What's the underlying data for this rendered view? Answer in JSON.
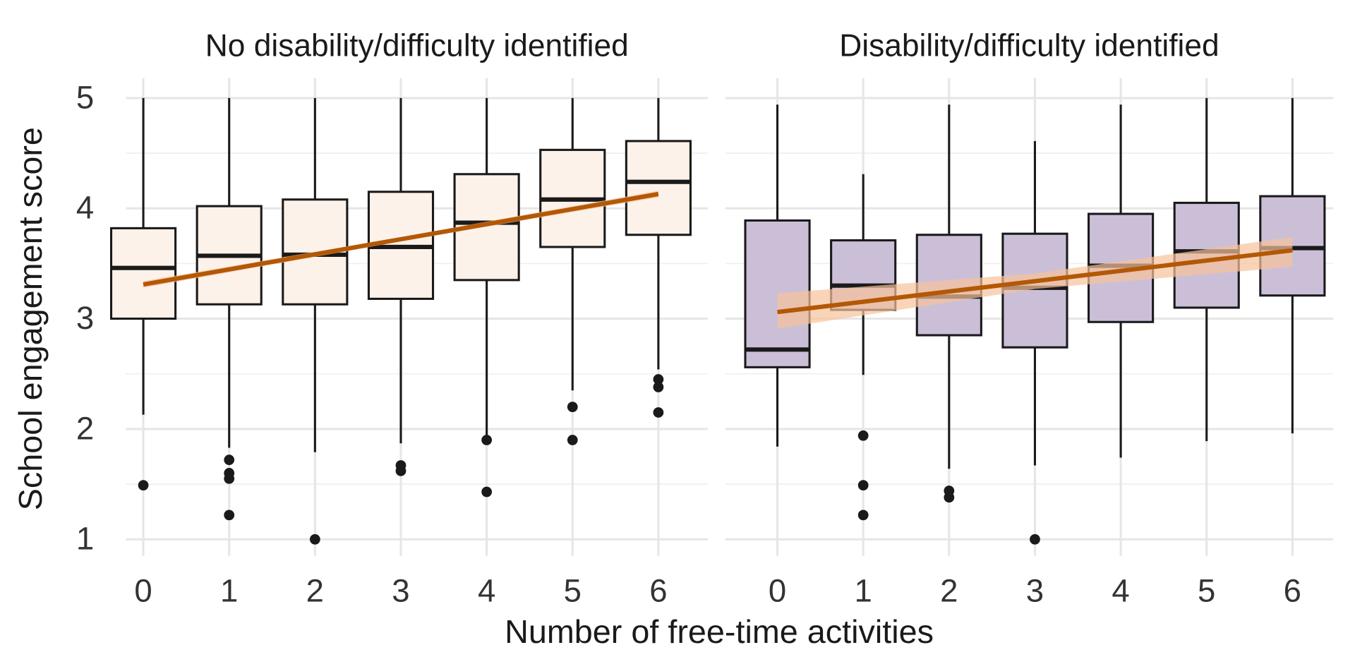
{
  "xlabel": "Number of free-time activities",
  "ylabel": "School engagement score",
  "chart_data": [
    {
      "type": "box",
      "title": "No disability/difficulty identified",
      "categories": [
        "0",
        "1",
        "2",
        "3",
        "4",
        "5",
        "6"
      ],
      "color": "#fdf2ea",
      "boxes": [
        {
          "low": 2.13,
          "q1": 3.0,
          "median": 3.46,
          "q3": 3.82,
          "high": 5,
          "outliers": [
            1.49
          ]
        },
        {
          "low": 1.83,
          "q1": 3.13,
          "median": 3.57,
          "q3": 4.02,
          "high": 5,
          "outliers": [
            1.72,
            1.6,
            1.55,
            1.22
          ]
        },
        {
          "low": 1.79,
          "q1": 3.13,
          "median": 3.58,
          "q3": 4.08,
          "high": 5,
          "outliers": [
            1.0
          ]
        },
        {
          "low": 1.87,
          "q1": 3.18,
          "median": 3.65,
          "q3": 4.15,
          "high": 5,
          "outliers": [
            1.67,
            1.62
          ]
        },
        {
          "low": 1.94,
          "q1": 3.35,
          "median": 3.87,
          "q3": 4.31,
          "high": 5,
          "outliers": [
            1.9,
            1.43
          ]
        },
        {
          "low": 2.35,
          "q1": 3.65,
          "median": 4.08,
          "q3": 4.53,
          "high": 5,
          "outliers": [
            2.2,
            1.9
          ]
        },
        {
          "low": 2.54,
          "q1": 3.76,
          "median": 4.24,
          "q3": 4.61,
          "high": 5,
          "outliers": [
            2.45,
            2.38,
            2.15
          ]
        }
      ],
      "trend": {
        "color": "#b35806",
        "ribbon_color": "#f6c29a",
        "x": [
          0,
          3,
          6
        ],
        "values": [
          3.31,
          3.72,
          4.13
        ],
        "lower": [
          3.28,
          3.7,
          4.1
        ],
        "upper": [
          3.34,
          3.74,
          4.16
        ]
      },
      "ylim": [
        0.85,
        5.18
      ],
      "yticks": [
        1,
        2,
        3,
        4,
        5
      ],
      "minor_yticks": [
        1.5,
        2.5,
        3.5,
        4.5
      ],
      "grid": true
    },
    {
      "type": "box",
      "title": "Disability/difficulty identified",
      "categories": [
        "0",
        "1",
        "2",
        "3",
        "4",
        "5",
        "6"
      ],
      "color": "#cbbfd8",
      "boxes": [
        {
          "low": 1.84,
          "q1": 2.56,
          "median": 2.72,
          "q3": 3.89,
          "high": 4.94,
          "outliers": []
        },
        {
          "low": 2.49,
          "q1": 3.08,
          "median": 3.3,
          "q3": 3.71,
          "high": 4.31,
          "outliers": [
            1.94,
            1.49,
            1.22
          ]
        },
        {
          "low": 1.64,
          "q1": 2.85,
          "median": 3.2,
          "q3": 3.76,
          "high": 4.94,
          "outliers": [
            1.44,
            1.38
          ]
        },
        {
          "low": 1.67,
          "q1": 2.74,
          "median": 3.28,
          "q3": 3.77,
          "high": 4.61,
          "outliers": [
            1.0
          ]
        },
        {
          "low": 1.74,
          "q1": 2.97,
          "median": 3.48,
          "q3": 3.95,
          "high": 4.94,
          "outliers": []
        },
        {
          "low": 1.89,
          "q1": 3.1,
          "median": 3.61,
          "q3": 4.05,
          "high": 5,
          "outliers": []
        },
        {
          "low": 1.96,
          "q1": 3.21,
          "median": 3.64,
          "q3": 4.11,
          "high": 5,
          "outliers": []
        }
      ],
      "trend": {
        "color": "#b35806",
        "ribbon_color": "#f6c29a",
        "x": [
          0,
          3,
          6
        ],
        "values": [
          3.06,
          3.34,
          3.62
        ],
        "lower": [
          2.91,
          3.27,
          3.47
        ],
        "upper": [
          3.23,
          3.41,
          3.74
        ]
      },
      "ylim": [
        0.85,
        5.18
      ],
      "yticks": [
        1,
        2,
        3,
        4,
        5
      ],
      "minor_yticks": [
        1.5,
        2.5,
        3.5,
        4.5
      ],
      "grid": true
    }
  ]
}
